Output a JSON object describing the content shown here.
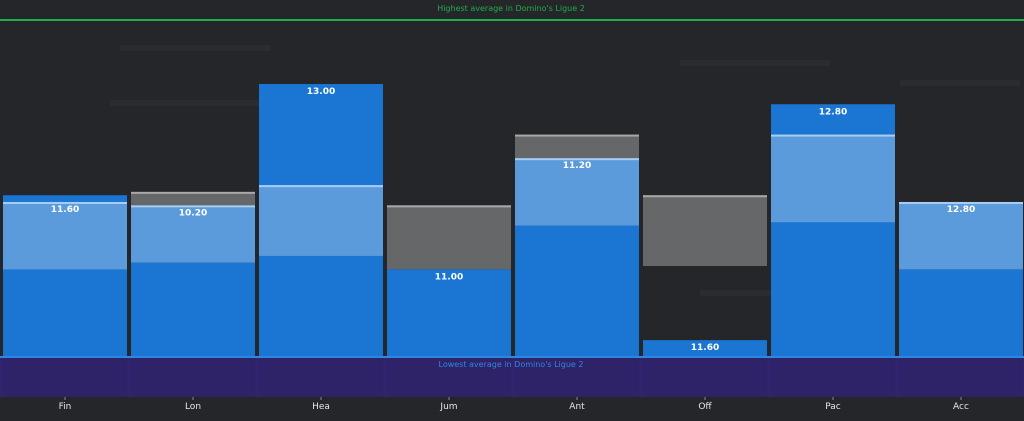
{
  "chart_data": {
    "type": "bar",
    "title": "",
    "scale": "fraction of range between lowest and highest average in league (0 = lowest, 1 = highest)",
    "ylim": [
      0,
      1
    ],
    "reference_lines": {
      "highest": {
        "label": "Highest average in Domino's Ligue 2",
        "value": 1,
        "color": "#1fae4a"
      },
      "lowest": {
        "label": "Lowest average in Domino's Ligue 2",
        "value": 0,
        "color": "#2f86e0"
      }
    },
    "colors": {
      "player": "#1a76d2",
      "compare": "#5b9bdb",
      "compare_edge": "#a9cdf0",
      "average": "#666769",
      "average_edge": "#a8a8a8",
      "below_band": "#30246e"
    },
    "categories": [
      "Fin",
      "Lon",
      "Hea",
      "Jum",
      "Ant",
      "Off",
      "Pac",
      "Acc"
    ],
    "bars": [
      {
        "category": "Fin",
        "label": "11.60",
        "label_at": 0.46,
        "segments": [
          {
            "kind": "player",
            "from": 0,
            "to": 0.48
          },
          {
            "kind": "compare",
            "from": 0.26,
            "to": 0.46
          }
        ]
      },
      {
        "category": "Lon",
        "label": "10.20",
        "label_at": 0.45,
        "segments": [
          {
            "kind": "average",
            "from": 0.45,
            "to": 0.49
          },
          {
            "kind": "compare",
            "from": 0.28,
            "to": 0.45
          },
          {
            "kind": "player",
            "from": 0,
            "to": 0.28
          }
        ]
      },
      {
        "category": "Hea",
        "label": "13.00",
        "label_at": 0.81,
        "segments": [
          {
            "kind": "player",
            "from": 0,
            "to": 0.81
          },
          {
            "kind": "compare",
            "from": 0.3,
            "to": 0.51
          }
        ]
      },
      {
        "category": "Jum",
        "label": "11.00",
        "label_at": 0.26,
        "segments": [
          {
            "kind": "average",
            "from": 0.26,
            "to": 0.45
          },
          {
            "kind": "player",
            "from": 0,
            "to": 0.26
          }
        ]
      },
      {
        "category": "Ant",
        "label": "11.20",
        "label_at": 0.59,
        "segments": [
          {
            "kind": "average",
            "from": 0.59,
            "to": 0.66
          },
          {
            "kind": "compare",
            "from": 0.39,
            "to": 0.59
          },
          {
            "kind": "player",
            "from": 0,
            "to": 0.39
          }
        ]
      },
      {
        "category": "Off",
        "label": "11.60",
        "label_at": 0.05,
        "segments": [
          {
            "kind": "average",
            "from": 0.27,
            "to": 0.48
          },
          {
            "kind": "player",
            "from": 0,
            "to": 0.05
          }
        ]
      },
      {
        "category": "Pac",
        "label": "12.80",
        "label_at": 0.75,
        "segments": [
          {
            "kind": "player",
            "from": 0,
            "to": 0.75
          },
          {
            "kind": "compare",
            "from": 0.4,
            "to": 0.66
          }
        ]
      },
      {
        "category": "Acc",
        "label": "12.80",
        "label_at": 0.46,
        "segments": [
          {
            "kind": "compare",
            "from": 0.26,
            "to": 0.46
          },
          {
            "kind": "player",
            "from": 0,
            "to": 0.26
          }
        ]
      }
    ]
  }
}
